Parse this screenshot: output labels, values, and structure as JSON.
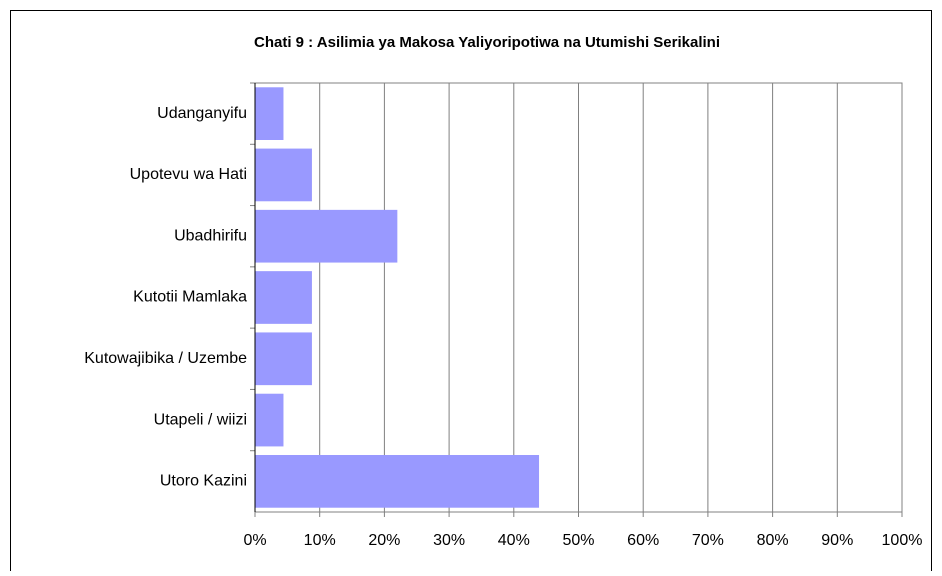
{
  "chart_data": {
    "type": "bar",
    "orientation": "horizontal",
    "title": "Chati 9 : Asilimia ya Makosa Yaliyoripotiwa na Utumishi Serikalini",
    "categories": [
      "Udanganyifu",
      "Upotevu wa Hati",
      "Ubadhirifu",
      "Kutotii Mamlaka",
      "Kutowajibika / Uzembe",
      "Utapeli / wiizi",
      "Utoro Kazini"
    ],
    "values": [
      4.4,
      8.8,
      22,
      8.8,
      8.8,
      4.4,
      43.9
    ],
    "color": "#9999ff",
    "xlim": [
      0,
      100
    ],
    "xticks": [
      {
        "value": 0,
        "label": "0%"
      },
      {
        "value": 10,
        "label": "10%"
      },
      {
        "value": 20,
        "label": "20%"
      },
      {
        "value": 30,
        "label": "30%"
      },
      {
        "value": 40,
        "label": "40%"
      },
      {
        "value": 50,
        "label": "50%"
      },
      {
        "value": 60,
        "label": "60%"
      },
      {
        "value": 70,
        "label": "70%"
      },
      {
        "value": 80,
        "label": "80%"
      },
      {
        "value": 90,
        "label": "90%"
      },
      {
        "value": 100,
        "label": "100%"
      }
    ],
    "grid": true
  }
}
